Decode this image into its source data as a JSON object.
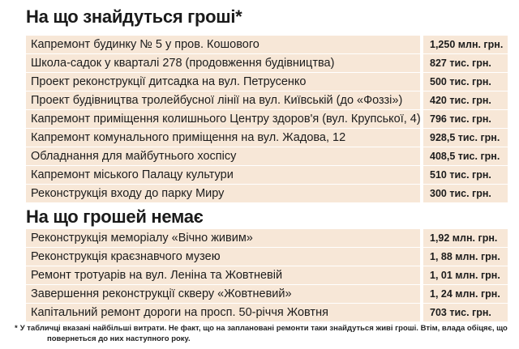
{
  "section_found": {
    "title": "На що знайдуться гроші*",
    "rows": [
      {
        "name": "Капремонт будинку № 5 у пров. Кошового",
        "value": "1,250 млн. грн."
      },
      {
        "name": "Школа-садок у кварталі 278 (продовження будівництва)",
        "value": "827 тис. грн."
      },
      {
        "name": "Проект реконструкції дитсадка на вул. Петрусенко",
        "value": "500 тис. грн."
      },
      {
        "name": "Проект будівництва тролейбусної лінії на вул. Київській (до «Фоззі»)",
        "value": "420 тис. грн."
      },
      {
        "name": "Капремонт приміщення колишнього Центру здоров'я (вул. Крупської, 4)",
        "value": "796 тис. грн."
      },
      {
        "name": "Капремонт комунального приміщення на вул. Жадова, 12",
        "value": "928,5 тис. грн."
      },
      {
        "name": "Обладнання для майбутнього хоспісу",
        "value": "408,5 тис. грн."
      },
      {
        "name": "Капремонт міського Палацу культури",
        "value": "510 тис. грн."
      },
      {
        "name": "Реконструкція входу до парку Миру",
        "value": "300 тис. грн."
      }
    ]
  },
  "section_missing": {
    "title": "На що грошей немає",
    "rows": [
      {
        "name": "Реконструкція меморіалу «Вічно живим»",
        "value": "1,92 млн. грн."
      },
      {
        "name": "Реконструкція краєзнавчого музею",
        "value": "1, 88 млн. грн."
      },
      {
        "name": "Ремонт тротуарів на вул. Леніна та Жовтневій",
        "value": "1, 01 млн. грн."
      },
      {
        "name": "Завершення реконструкції скверу «Жовтневий»",
        "value": "1, 24 млн. грн."
      },
      {
        "name": "Капітальний ремонт дороги на просп. 50-річчя Жовтня",
        "value": "703 тис. грн."
      }
    ]
  },
  "footnote": {
    "star": "*",
    "line1": "У табличці вказані найбільші витрати. Не факт, що на заплановані ремонти таки знайдуться живі гроші. Втім, влада обіцяє, що",
    "line2": "повернеться до них наступного року."
  },
  "colors": {
    "row_background": "#f7e7d7",
    "text": "#1b1b1b"
  }
}
